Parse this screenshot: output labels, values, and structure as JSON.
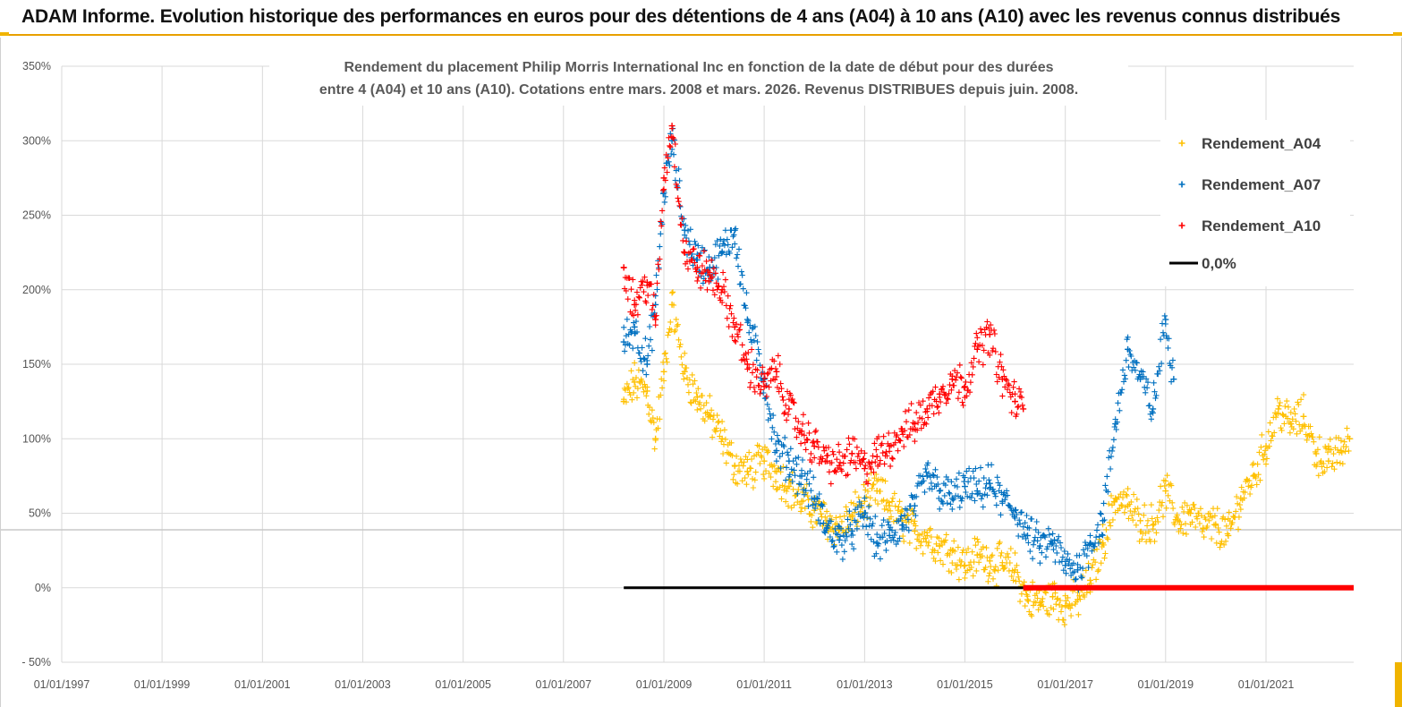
{
  "banner": {
    "title": "ADAM Informe. Evolution historique des performances en euros pour des détentions de 4 ans (A04) à 10 ans (A10) avec les revenus connus distribués"
  },
  "colors": {
    "accent": "#f0b400",
    "A04": "#ffc000",
    "A07": "#0070c0",
    "A10": "#ff0000",
    "zero": "#000000",
    "grid": "#d9d9d9"
  },
  "chart_data": {
    "type": "scatter",
    "title_lines": [
      "Rendement du placement Philip Morris International Inc en fonction de la date de début pour des durées",
      "entre 4 (A04) et 10 ans (A10). Cotations entre mars. 2008 et mars. 2026. Revenus DISTRIBUES depuis juin. 2008."
    ],
    "xlabel": "",
    "ylabel": "",
    "x_ticks": [
      "01/01/1997",
      "01/01/1999",
      "01/01/2001",
      "01/01/2003",
      "01/01/2005",
      "01/01/2007",
      "01/01/2009",
      "01/01/2011",
      "01/01/2013",
      "01/01/2015",
      "01/01/2017",
      "01/01/2019",
      "01/01/2021"
    ],
    "xlim": [
      "1997-01-01",
      "2022-10-01"
    ],
    "y_ticks": [
      "- 50%",
      "0%",
      "50%",
      "100%",
      "150%",
      "200%",
      "250%",
      "300%",
      "350%"
    ],
    "ylim": [
      -50,
      350
    ],
    "y_unit": "%",
    "grid": true,
    "legend_position": "top-right",
    "series": [
      {
        "name": "Rendement_A04",
        "marker": "+",
        "color": "#ffc000",
        "points": [
          [
            "2008-03-15",
            125
          ],
          [
            "2008-06-01",
            138
          ],
          [
            "2008-09-01",
            132
          ],
          [
            "2008-11-01",
            100
          ],
          [
            "2009-01-01",
            145
          ],
          [
            "2009-03-01",
            190
          ],
          [
            "2009-06-01",
            145
          ],
          [
            "2009-09-01",
            128
          ],
          [
            "2009-12-01",
            115
          ],
          [
            "2010-03-01",
            100
          ],
          [
            "2010-06-01",
            82
          ],
          [
            "2010-09-01",
            78
          ],
          [
            "2011-01-01",
            85
          ],
          [
            "2011-04-01",
            78
          ],
          [
            "2011-07-01",
            68
          ],
          [
            "2011-10-01",
            58
          ],
          [
            "2012-01-01",
            52
          ],
          [
            "2012-04-01",
            45
          ],
          [
            "2012-07-01",
            40
          ],
          [
            "2012-10-01",
            48
          ],
          [
            "2013-01-01",
            58
          ],
          [
            "2013-04-01",
            65
          ],
          [
            "2013-07-01",
            55
          ],
          [
            "2013-10-01",
            45
          ],
          [
            "2014-01-01",
            38
          ],
          [
            "2014-04-01",
            35
          ],
          [
            "2014-07-01",
            28
          ],
          [
            "2014-10-01",
            25
          ],
          [
            "2015-01-01",
            15
          ],
          [
            "2015-04-01",
            22
          ],
          [
            "2015-07-01",
            18
          ],
          [
            "2015-10-01",
            15
          ],
          [
            "2016-01-01",
            12
          ],
          [
            "2016-04-01",
            -8
          ],
          [
            "2016-07-01",
            -10
          ],
          [
            "2016-10-01",
            -6
          ],
          [
            "2017-01-01",
            -12
          ],
          [
            "2017-04-01",
            -8
          ],
          [
            "2017-07-01",
            5
          ],
          [
            "2017-10-01",
            30
          ],
          [
            "2018-01-01",
            60
          ],
          [
            "2018-04-01",
            55
          ],
          [
            "2018-07-01",
            45
          ],
          [
            "2018-10-01",
            42
          ],
          [
            "2019-01-01",
            65
          ],
          [
            "2019-04-01",
            45
          ],
          [
            "2019-07-01",
            50
          ],
          [
            "2019-10-01",
            40
          ],
          [
            "2020-01-01",
            42
          ],
          [
            "2020-04-01",
            35
          ],
          [
            "2020-07-01",
            60
          ],
          [
            "2020-10-01",
            75
          ],
          [
            "2021-01-01",
            95
          ],
          [
            "2021-04-01",
            120
          ],
          [
            "2021-07-01",
            110
          ],
          [
            "2021-10-01",
            115
          ],
          [
            "2022-01-01",
            90
          ],
          [
            "2022-04-01",
            85
          ],
          [
            "2022-07-01",
            92
          ],
          [
            "2022-09-01",
            100
          ]
        ]
      },
      {
        "name": "Rendement_A07",
        "marker": "+",
        "color": "#0070c0",
        "points": [
          [
            "2008-03-15",
            165
          ],
          [
            "2008-06-01",
            175
          ],
          [
            "2008-09-01",
            150
          ],
          [
            "2008-11-01",
            190
          ],
          [
            "2009-01-01",
            265
          ],
          [
            "2009-03-01",
            300
          ],
          [
            "2009-06-01",
            240
          ],
          [
            "2009-09-01",
            220
          ],
          [
            "2009-12-01",
            215
          ],
          [
            "2010-03-01",
            225
          ],
          [
            "2010-06-01",
            240
          ],
          [
            "2010-09-01",
            180
          ],
          [
            "2011-01-01",
            140
          ],
          [
            "2011-04-01",
            92
          ],
          [
            "2011-07-01",
            85
          ],
          [
            "2011-10-01",
            75
          ],
          [
            "2012-01-01",
            60
          ],
          [
            "2012-04-01",
            40
          ],
          [
            "2012-07-01",
            32
          ],
          [
            "2012-10-01",
            38
          ],
          [
            "2013-01-01",
            50
          ],
          [
            "2013-04-01",
            30
          ],
          [
            "2013-07-01",
            35
          ],
          [
            "2013-10-01",
            42
          ],
          [
            "2014-01-01",
            55
          ],
          [
            "2014-04-01",
            75
          ],
          [
            "2014-07-01",
            65
          ],
          [
            "2014-10-01",
            60
          ],
          [
            "2015-01-01",
            68
          ],
          [
            "2015-04-01",
            65
          ],
          [
            "2015-07-01",
            70
          ],
          [
            "2015-10-01",
            58
          ],
          [
            "2016-01-01",
            52
          ],
          [
            "2016-04-01",
            35
          ],
          [
            "2016-07-01",
            28
          ],
          [
            "2016-10-01",
            30
          ],
          [
            "2017-01-01",
            15
          ],
          [
            "2017-04-01",
            12
          ],
          [
            "2017-07-01",
            30
          ],
          [
            "2017-10-01",
            45
          ],
          [
            "2018-01-01",
            110
          ],
          [
            "2018-04-01",
            160
          ],
          [
            "2018-07-01",
            140
          ],
          [
            "2018-10-01",
            120
          ],
          [
            "2019-01-01",
            180
          ],
          [
            "2019-03-01",
            140
          ]
        ]
      },
      {
        "name": "Rendement_A10",
        "marker": "+",
        "color": "#ff0000",
        "points": [
          [
            "2008-03-15",
            215
          ],
          [
            "2008-06-01",
            190
          ],
          [
            "2008-09-01",
            205
          ],
          [
            "2008-11-01",
            180
          ],
          [
            "2009-01-01",
            275
          ],
          [
            "2009-03-01",
            310
          ],
          [
            "2009-06-01",
            225
          ],
          [
            "2009-09-01",
            215
          ],
          [
            "2009-12-01",
            210
          ],
          [
            "2010-03-01",
            200
          ],
          [
            "2010-06-01",
            175
          ],
          [
            "2010-09-01",
            150
          ],
          [
            "2011-01-01",
            135
          ],
          [
            "2011-04-01",
            145
          ],
          [
            "2011-07-01",
            120
          ],
          [
            "2011-10-01",
            105
          ],
          [
            "2012-01-01",
            95
          ],
          [
            "2012-04-01",
            85
          ],
          [
            "2012-07-01",
            82
          ],
          [
            "2012-10-01",
            90
          ],
          [
            "2013-01-01",
            80
          ],
          [
            "2013-04-01",
            88
          ],
          [
            "2013-07-01",
            95
          ],
          [
            "2013-10-01",
            105
          ],
          [
            "2014-01-01",
            110
          ],
          [
            "2014-04-01",
            120
          ],
          [
            "2014-07-01",
            130
          ],
          [
            "2014-10-01",
            140
          ],
          [
            "2015-01-01",
            135
          ],
          [
            "2015-04-01",
            160
          ],
          [
            "2015-07-01",
            170
          ],
          [
            "2015-10-01",
            140
          ],
          [
            "2016-01-01",
            125
          ],
          [
            "2016-03-01",
            120
          ]
        ]
      },
      {
        "name": "0,0%",
        "marker": "line",
        "color": "#000000",
        "points": [
          [
            "2008-03-15",
            0
          ],
          [
            "2016-03-01",
            0
          ]
        ]
      }
    ],
    "a10_zero_segment": {
      "color": "#ff0000",
      "x": [
        "2016-03-01",
        "2022-10-01"
      ],
      "y": 0
    }
  }
}
